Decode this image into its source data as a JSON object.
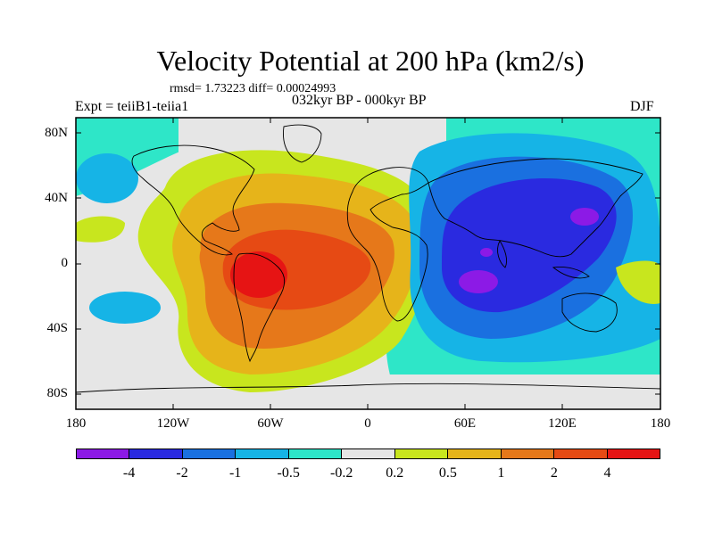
{
  "header": {
    "title": "Velocity Potential at 200 hPa (km2/s)",
    "stats": "rmsd= 1.73223 diff= 0.00024993",
    "left_label": "Expt = teiiB1-teiia1",
    "center_label": "032kyr BP - 000kyr BP",
    "right_label": "DJF"
  },
  "map": {
    "lat_labels": [
      "80N",
      "40N",
      "0",
      "40S",
      "80S"
    ],
    "lon_labels": [
      "180",
      "120W",
      "60W",
      "0",
      "60E",
      "120E",
      "180"
    ],
    "projection": "cylindrical equidistant, global",
    "field": "velocity potential anomaly, positive over Americas/Atlantic, negative over Indian Ocean/West Pacific"
  },
  "colorbar": {
    "colors": [
      "#8c1ae6",
      "#2a2ae0",
      "#1a70e0",
      "#16b4e6",
      "#2ee6c8",
      "#e6e6e6",
      "#c8e61e",
      "#e6b41a",
      "#e6781a",
      "#e64a14",
      "#e61414"
    ],
    "labels": [
      "-4",
      "-2",
      "-1",
      "-0.5",
      "-0.2",
      "0.2",
      "0.5",
      "1",
      "2",
      "4"
    ]
  }
}
